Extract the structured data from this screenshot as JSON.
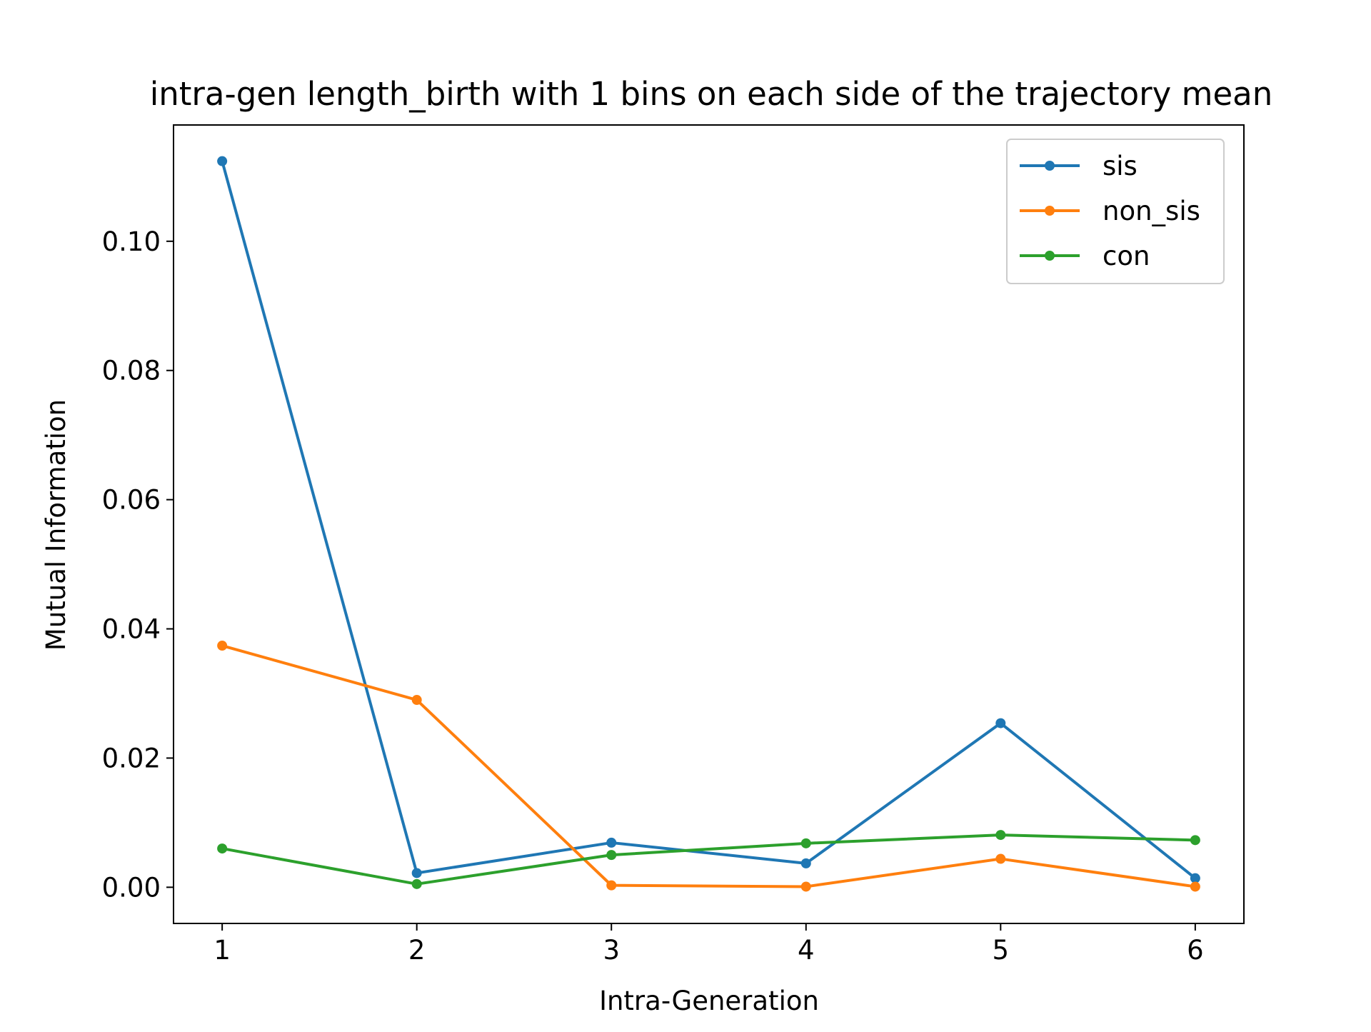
{
  "chart_data": {
    "type": "line",
    "title": "intra-gen length_birth with 1 bins on each side of the trajectory mean",
    "xlabel": "Intra-Generation",
    "ylabel": "Mutual Information",
    "x": [
      1,
      2,
      3,
      4,
      5,
      6
    ],
    "x_ticks": [
      "1",
      "2",
      "3",
      "4",
      "5",
      "6"
    ],
    "y_ticks": [
      "0.00",
      "0.02",
      "0.04",
      "0.06",
      "0.08",
      "0.10"
    ],
    "y_tick_values": [
      0.0,
      0.02,
      0.04,
      0.06,
      0.08,
      0.1
    ],
    "xlim": [
      0.75,
      6.25
    ],
    "ylim": [
      -0.0056,
      0.118
    ],
    "grid": false,
    "legend_position": "upper right",
    "series": [
      {
        "name": "sis",
        "color": "#1f77b4",
        "values": [
          0.1124,
          0.0022,
          0.0069,
          0.0037,
          0.0254,
          0.0014
        ]
      },
      {
        "name": "non_sis",
        "color": "#ff7f0e",
        "values": [
          0.0374,
          0.029,
          0.0003,
          0.0001,
          0.0044,
          0.0001
        ]
      },
      {
        "name": "con",
        "color": "#2ca02c",
        "values": [
          0.006,
          0.0005,
          0.005,
          0.0068,
          0.0081,
          0.0073
        ]
      }
    ]
  }
}
